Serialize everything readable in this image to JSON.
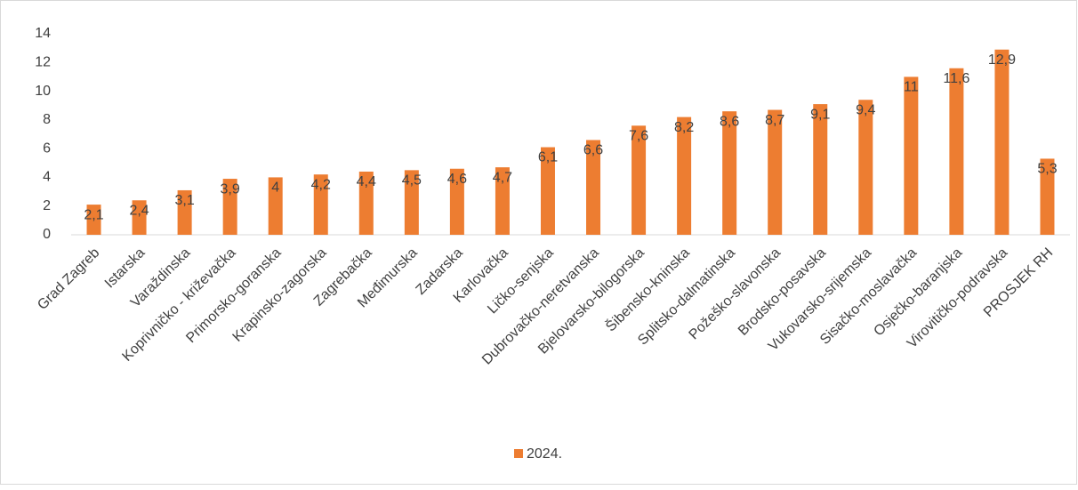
{
  "chart_data": {
    "type": "bar",
    "categories": [
      "Grad Zagreb",
      "Istarska",
      "Varaždinska",
      "Koprivničko - križevačka",
      "Primorsko-goranska",
      "Krapinsko-zagorska",
      "Zagrebačka",
      "Međimurska",
      "Zadarska",
      "Karlovačka",
      "Ličko-senjska",
      "Dubrovačko-neretvanska",
      "Bjelovarsko-bilogorska",
      "Šibensko-kninska",
      "Splitsko-dalmatinska",
      "Požeško-slavonska",
      "Brodsko-posavska",
      "Vukovarsko-srijemska",
      "Sisačko-moslavačka",
      "Osječko-baranjska",
      "Virovitičko-podravska",
      "PROSJEK RH"
    ],
    "series": [
      {
        "name": "2024.",
        "color": "#ed7d31",
        "values": [
          2.1,
          2.4,
          3.1,
          3.9,
          4,
          4.2,
          4.4,
          4.5,
          4.6,
          4.7,
          6.1,
          6.6,
          7.6,
          8.2,
          8.6,
          8.7,
          9.1,
          9.4,
          11,
          11.6,
          12.9,
          5.3
        ],
        "value_labels": [
          "2,1",
          "2,4",
          "3,1",
          "3,9",
          "4",
          "4,2",
          "4,4",
          "4,5",
          "4,6",
          "4,7",
          "6,1",
          "6,6",
          "7,6",
          "8,2",
          "8,6",
          "8,7",
          "9,1",
          "9,4",
          "11",
          "11,6",
          "12,9",
          "5,3"
        ]
      }
    ],
    "ylim": [
      0,
      14
    ],
    "yticks": [
      0,
      2,
      4,
      6,
      8,
      10,
      12,
      14
    ],
    "grid": false,
    "legend": "bottom"
  }
}
